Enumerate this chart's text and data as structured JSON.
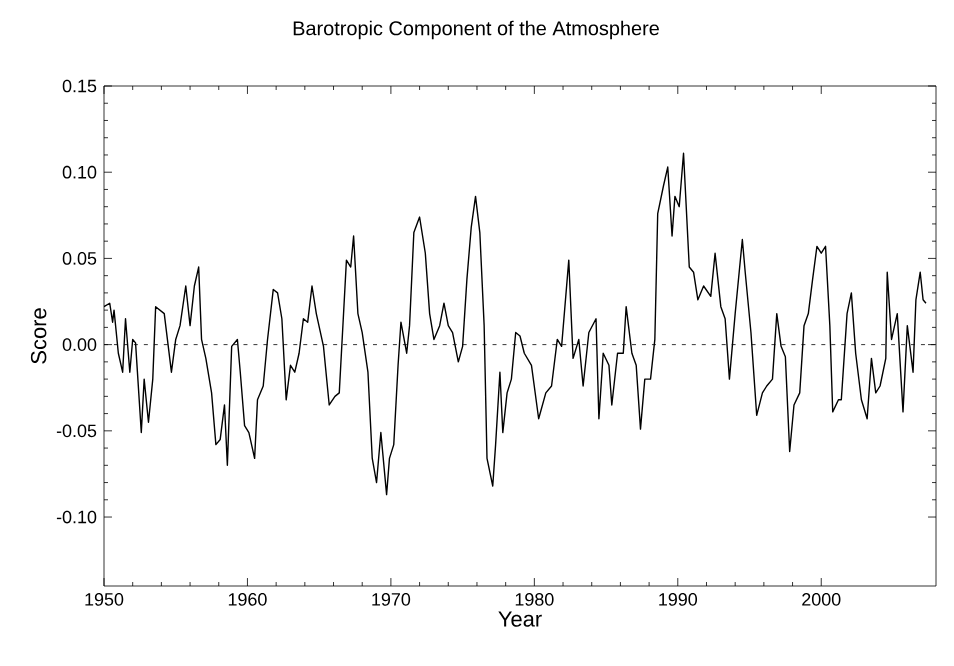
{
  "chart_data": {
    "type": "line",
    "title": "Barotropic Component of the Atmosphere",
    "xlabel": "Year",
    "ylabel": "Score",
    "xlim": [
      1950,
      2008
    ],
    "ylim": [
      -0.14,
      0.15
    ],
    "xticks": [
      1950,
      1960,
      1970,
      1980,
      1990,
      2000
    ],
    "yticks": [
      {
        "value": -0.1,
        "label": "-0.10"
      },
      {
        "value": -0.05,
        "label": "-0.05"
      },
      {
        "value": 0,
        "label": "0.00"
      },
      {
        "value": 0.05,
        "label": "0.05"
      },
      {
        "value": 0.1,
        "label": "0.10"
      },
      {
        "value": 0.15,
        "label": "0.15"
      }
    ],
    "ref_lines": [
      {
        "axis": "y",
        "value": 0,
        "line_style": "dotted",
        "color": "#000000"
      }
    ],
    "grid": false,
    "marker": "none",
    "line_style": "solid",
    "series": [
      {
        "color": "#000000",
        "x": [
          1950.0,
          1950.4,
          1950.6,
          1950.7,
          1951.0,
          1951.3,
          1951.5,
          1951.8,
          1952.0,
          1952.2,
          1952.6,
          1952.8,
          1953.1,
          1953.4,
          1953.6,
          1954.2,
          1954.7,
          1955.0,
          1955.3,
          1955.7,
          1956.0,
          1956.3,
          1956.6,
          1956.8,
          1957.1,
          1957.5,
          1957.8,
          1958.1,
          1958.4,
          1958.6,
          1958.9,
          1959.3,
          1959.5,
          1959.8,
          1960.1,
          1960.5,
          1960.7,
          1961.1,
          1961.4,
          1961.8,
          1962.1,
          1962.4,
          1962.7,
          1963.0,
          1963.3,
          1963.6,
          1963.9,
          1964.2,
          1964.5,
          1964.8,
          1965.3,
          1965.7,
          1966.1,
          1966.4,
          1966.7,
          1966.9,
          1967.2,
          1967.4,
          1967.7,
          1968.0,
          1968.4,
          1968.7,
          1969.0,
          1969.3,
          1969.7,
          1969.9,
          1970.2,
          1970.5,
          1970.7,
          1971.1,
          1971.3,
          1971.6,
          1972.0,
          1972.4,
          1972.7,
          1973.0,
          1973.4,
          1973.7,
          1974.0,
          1974.3,
          1974.7,
          1975.0,
          1975.3,
          1975.6,
          1975.9,
          1976.2,
          1976.5,
          1976.7,
          1977.1,
          1977.3,
          1977.6,
          1977.8,
          1978.1,
          1978.4,
          1978.7,
          1979.0,
          1979.3,
          1979.8,
          1980.3,
          1980.8,
          1981.2,
          1981.6,
          1981.9,
          1982.4,
          1982.7,
          1983.1,
          1983.4,
          1983.8,
          1984.3,
          1984.5,
          1984.8,
          1985.2,
          1985.4,
          1985.8,
          1986.2,
          1986.4,
          1986.8,
          1987.1,
          1987.4,
          1987.7,
          1988.1,
          1988.4,
          1988.6,
          1989.0,
          1989.3,
          1989.6,
          1989.8,
          1990.1,
          1990.4,
          1990.8,
          1991.1,
          1991.4,
          1991.8,
          1992.3,
          1992.6,
          1993.0,
          1993.3,
          1993.6,
          1994.0,
          1994.5,
          1994.7,
          1995.1,
          1995.5,
          1995.9,
          1996.2,
          1996.6,
          1996.9,
          1997.2,
          1997.5,
          1997.8,
          1998.1,
          1998.5,
          1998.8,
          1999.1,
          1999.4,
          1999.7,
          2000.0,
          2000.3,
          2000.6,
          2000.8,
          2001.2,
          2001.4,
          2001.8,
          2002.1,
          2002.4,
          2002.8,
          2003.2,
          2003.5,
          2003.8,
          2004.1,
          2004.5,
          2004.6,
          2004.9,
          2005.3,
          2005.7,
          2006.0,
          2006.4,
          2006.6,
          2006.9,
          2007.1,
          2007.3
        ],
        "values": [
          0.022,
          0.024,
          0.013,
          0.02,
          -0.005,
          -0.016,
          0.015,
          -0.016,
          0.003,
          0.001,
          -0.051,
          -0.02,
          -0.045,
          -0.02,
          0.022,
          0.018,
          -0.016,
          0.003,
          0.011,
          0.034,
          0.011,
          0.034,
          0.045,
          0.003,
          -0.008,
          -0.028,
          -0.058,
          -0.055,
          -0.035,
          -0.07,
          -0.001,
          0.003,
          -0.016,
          -0.047,
          -0.051,
          -0.066,
          -0.032,
          -0.024,
          0.003,
          0.032,
          0.03,
          0.015,
          -0.032,
          -0.012,
          -0.016,
          -0.005,
          0.015,
          0.013,
          0.034,
          0.018,
          -0.001,
          -0.035,
          -0.03,
          -0.028,
          0.018,
          0.049,
          0.045,
          0.063,
          0.018,
          0.007,
          -0.016,
          -0.066,
          -0.08,
          -0.051,
          -0.087,
          -0.066,
          -0.058,
          -0.012,
          0.013,
          -0.005,
          0.011,
          0.065,
          0.074,
          0.053,
          0.018,
          0.003,
          0.011,
          0.024,
          0.011,
          0.007,
          -0.01,
          -0.001,
          0.038,
          0.068,
          0.086,
          0.065,
          0.011,
          -0.066,
          -0.082,
          -0.058,
          -0.016,
          -0.051,
          -0.028,
          -0.02,
          0.007,
          0.005,
          -0.005,
          -0.012,
          -0.043,
          -0.028,
          -0.024,
          0.003,
          -0.001,
          0.049,
          -0.008,
          0.003,
          -0.024,
          0.007,
          0.015,
          -0.043,
          -0.005,
          -0.012,
          -0.035,
          -0.005,
          -0.005,
          0.022,
          -0.005,
          -0.012,
          -0.049,
          -0.02,
          -0.02,
          0.003,
          0.076,
          0.092,
          0.103,
          0.063,
          0.086,
          0.08,
          0.111,
          0.045,
          0.042,
          0.026,
          0.034,
          0.028,
          0.053,
          0.022,
          0.015,
          -0.02,
          0.018,
          0.061,
          0.042,
          0.007,
          -0.041,
          -0.028,
          -0.024,
          -0.02,
          0.018,
          -0.001,
          -0.007,
          -0.062,
          -0.035,
          -0.028,
          0.011,
          0.018,
          0.038,
          0.057,
          0.053,
          0.057,
          0.011,
          -0.039,
          -0.032,
          -0.032,
          0.018,
          0.03,
          -0.005,
          -0.032,
          -0.043,
          -0.008,
          -0.028,
          -0.024,
          -0.008,
          0.042,
          0.003,
          0.018,
          -0.039,
          0.011,
          -0.016,
          0.026,
          0.042,
          0.026,
          0.024
        ]
      }
    ]
  }
}
